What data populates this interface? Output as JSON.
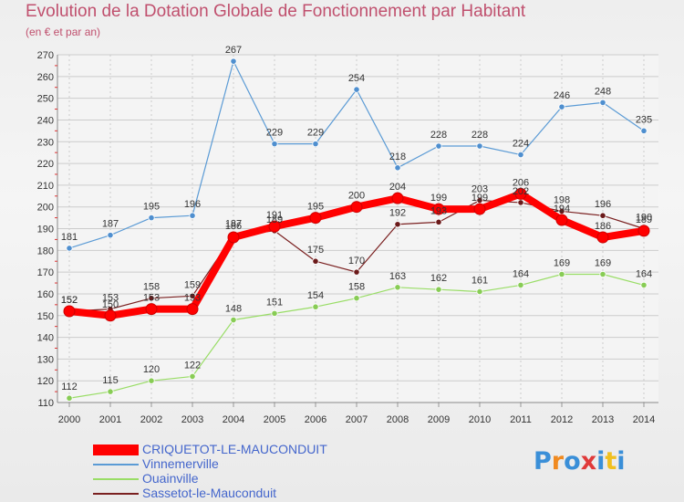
{
  "chart_data": {
    "type": "line",
    "title": "Evolution de la Dotation Globale de Fonctionnement par Habitant",
    "subtitle": "(en € et par an)",
    "xlabel": "",
    "ylabel": "",
    "ylim": [
      110,
      270
    ],
    "yticks": [
      110,
      120,
      130,
      140,
      150,
      160,
      170,
      180,
      190,
      200,
      210,
      220,
      230,
      240,
      250,
      260,
      270
    ],
    "x": [
      "2000",
      "2001",
      "2002",
      "2003",
      "2004",
      "2005",
      "2006",
      "2007",
      "2008",
      "2009",
      "2010",
      "2011",
      "2012",
      "2013",
      "2014"
    ],
    "series": [
      {
        "name": "CRIQUETOT-LE-MAUCONDUIT",
        "color": "#ff0000",
        "values": [
          152,
          150,
          153,
          153,
          186,
          191,
          195,
          200,
          204,
          199,
          199,
          206,
          194,
          186,
          189
        ],
        "labels": [
          "152",
          "150",
          "153",
          "153",
          "186",
          "191",
          "195",
          "200",
          "204",
          "199",
          "199",
          "206",
          "194",
          "186",
          "189"
        ]
      },
      {
        "name": "Vinnemerville",
        "color": "#5b9bd5",
        "values": [
          181,
          187,
          195,
          196,
          267,
          229,
          229,
          254,
          218,
          228,
          228,
          224,
          246,
          248,
          235
        ],
        "labels": [
          "181",
          "187",
          "195",
          "196",
          "267",
          "229",
          "229",
          "254",
          "218",
          "228",
          "228",
          "224",
          "246",
          "248",
          "235"
        ]
      },
      {
        "name": "Ouainville",
        "color": "#99dd66",
        "values": [
          112,
          115,
          120,
          122,
          148,
          151,
          154,
          158,
          163,
          162,
          161,
          164,
          169,
          169,
          164
        ],
        "labels": [
          "112",
          "115",
          "120",
          "122",
          "148",
          "151",
          "154",
          "158",
          "163",
          "162",
          "161",
          "164",
          "169",
          "169",
          "164"
        ]
      },
      {
        "name": "Sassetot-le-Mauconduit",
        "color": "#7a2020",
        "values": [
          152,
          153,
          158,
          159,
          187,
          189,
          175,
          170,
          192,
          193,
          203,
          202,
          198,
          196,
          190
        ],
        "labels": [
          "152",
          "153",
          "158",
          "159",
          "187",
          "189",
          "175",
          "170",
          "192",
          "193",
          "203",
          "202",
          "198",
          "196",
          "190"
        ]
      }
    ],
    "legend_position": "bottom-left"
  },
  "logo": {
    "letters": [
      "P",
      "r",
      "o",
      "x",
      "i",
      "t",
      "i"
    ],
    "colors": [
      "#3a8fd8",
      "#f08a20",
      "#3a8fd8",
      "#e03a3a",
      "#3a8fd8",
      "#f0c020",
      "#3a8fd8"
    ]
  }
}
